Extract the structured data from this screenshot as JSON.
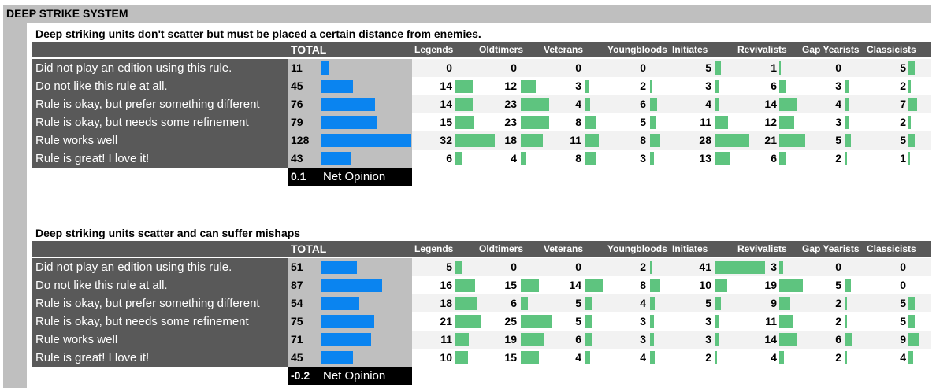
{
  "title": "DEEP STRIKE SYSTEM",
  "groups": [
    "Legends",
    "Oldtimers",
    "Veterans",
    "Youngbloods",
    "Initiates",
    "Revivalists",
    "Gap Yearists",
    "Classicists"
  ],
  "total_header": "TOTAL",
  "net_label": "Net Opinion",
  "colors": {
    "total_bar": "#0a84f0",
    "group_bar": "#5ec47f",
    "label_bg": "#595959",
    "total_bg": "#bfbfbf"
  },
  "sections": [
    {
      "subtitle": "Deep striking units don't scatter but must be placed a certain distance from enemies.",
      "net_opinion": "0.1",
      "rows": [
        {
          "label": "Did not play an edition using this rule.",
          "total": 11,
          "groups": [
            0,
            0,
            0,
            0,
            5,
            1,
            0,
            5
          ]
        },
        {
          "label": "Do not like this rule at all.",
          "total": 45,
          "groups": [
            14,
            12,
            3,
            2,
            3,
            6,
            3,
            2
          ]
        },
        {
          "label": "Rule is okay, but prefer something different",
          "total": 76,
          "groups": [
            14,
            23,
            4,
            6,
            4,
            14,
            4,
            7
          ]
        },
        {
          "label": "Rule is okay, but needs some refinement",
          "total": 79,
          "groups": [
            15,
            23,
            8,
            5,
            11,
            12,
            3,
            2
          ]
        },
        {
          "label": "Rule works well",
          "total": 128,
          "groups": [
            32,
            18,
            11,
            8,
            28,
            21,
            5,
            5
          ]
        },
        {
          "label": "Rule is great! I love it!",
          "total": 43,
          "groups": [
            6,
            4,
            8,
            3,
            13,
            6,
            2,
            1
          ]
        }
      ]
    },
    {
      "subtitle": "Deep striking units scatter and can suffer mishaps",
      "net_opinion": "-0.2",
      "rows": [
        {
          "label": "Did not play an edition using this rule.",
          "total": 51,
          "groups": [
            5,
            0,
            0,
            2,
            41,
            3,
            0,
            0
          ]
        },
        {
          "label": "Do not like this rule at all.",
          "total": 87,
          "groups": [
            16,
            15,
            14,
            8,
            10,
            19,
            5,
            0
          ]
        },
        {
          "label": "Rule is okay, but prefer something different",
          "total": 54,
          "groups": [
            18,
            6,
            5,
            4,
            5,
            9,
            2,
            5
          ]
        },
        {
          "label": "Rule is okay, but needs some refinement",
          "total": 75,
          "groups": [
            21,
            25,
            5,
            3,
            3,
            11,
            2,
            5
          ]
        },
        {
          "label": "Rule works well",
          "total": 71,
          "groups": [
            11,
            19,
            6,
            3,
            3,
            14,
            6,
            9
          ]
        },
        {
          "label": "Rule is great! I love it!",
          "total": 45,
          "groups": [
            10,
            15,
            4,
            4,
            2,
            4,
            2,
            4
          ]
        }
      ]
    }
  ],
  "chart_data": [
    {
      "type": "bar",
      "title": "Deep striking units don't scatter but must be placed a certain distance from enemies.",
      "categories": [
        "Did not play an edition using this rule.",
        "Do not like this rule at all.",
        "Rule is okay, but prefer something different",
        "Rule is okay, but needs some refinement",
        "Rule works well",
        "Rule is great! I love it!"
      ],
      "series": [
        {
          "name": "TOTAL",
          "values": [
            11,
            45,
            76,
            79,
            128,
            43
          ]
        },
        {
          "name": "Legends",
          "values": [
            0,
            14,
            14,
            15,
            32,
            6
          ]
        },
        {
          "name": "Oldtimers",
          "values": [
            0,
            12,
            23,
            23,
            18,
            4
          ]
        },
        {
          "name": "Veterans",
          "values": [
            0,
            3,
            4,
            8,
            11,
            8
          ]
        },
        {
          "name": "Youngbloods",
          "values": [
            0,
            2,
            6,
            5,
            8,
            3
          ]
        },
        {
          "name": "Initiates",
          "values": [
            5,
            3,
            4,
            11,
            28,
            13
          ]
        },
        {
          "name": "Revivalists",
          "values": [
            1,
            6,
            14,
            12,
            21,
            6
          ]
        },
        {
          "name": "Gap Yearists",
          "values": [
            0,
            3,
            4,
            3,
            5,
            2
          ]
        },
        {
          "name": "Classicists",
          "values": [
            5,
            2,
            7,
            2,
            5,
            1
          ]
        }
      ],
      "net_opinion": 0.1
    },
    {
      "type": "bar",
      "title": "Deep striking units scatter and can suffer mishaps",
      "categories": [
        "Did not play an edition using this rule.",
        "Do not like this rule at all.",
        "Rule is okay, but prefer something different",
        "Rule is okay, but needs some refinement",
        "Rule works well",
        "Rule is great! I love it!"
      ],
      "series": [
        {
          "name": "TOTAL",
          "values": [
            51,
            87,
            54,
            75,
            71,
            45
          ]
        },
        {
          "name": "Legends",
          "values": [
            5,
            16,
            18,
            21,
            11,
            10
          ]
        },
        {
          "name": "Oldtimers",
          "values": [
            0,
            15,
            6,
            25,
            19,
            15
          ]
        },
        {
          "name": "Veterans",
          "values": [
            0,
            14,
            5,
            5,
            6,
            4
          ]
        },
        {
          "name": "Youngbloods",
          "values": [
            2,
            8,
            4,
            3,
            3,
            4
          ]
        },
        {
          "name": "Initiates",
          "values": [
            41,
            10,
            5,
            3,
            3,
            2
          ]
        },
        {
          "name": "Revivalists",
          "values": [
            3,
            19,
            9,
            11,
            14,
            4
          ]
        },
        {
          "name": "Gap Yearists",
          "values": [
            0,
            5,
            2,
            2,
            6,
            2
          ]
        },
        {
          "name": "Classicists",
          "values": [
            0,
            0,
            5,
            5,
            9,
            4
          ]
        }
      ],
      "net_opinion": -0.2
    }
  ]
}
